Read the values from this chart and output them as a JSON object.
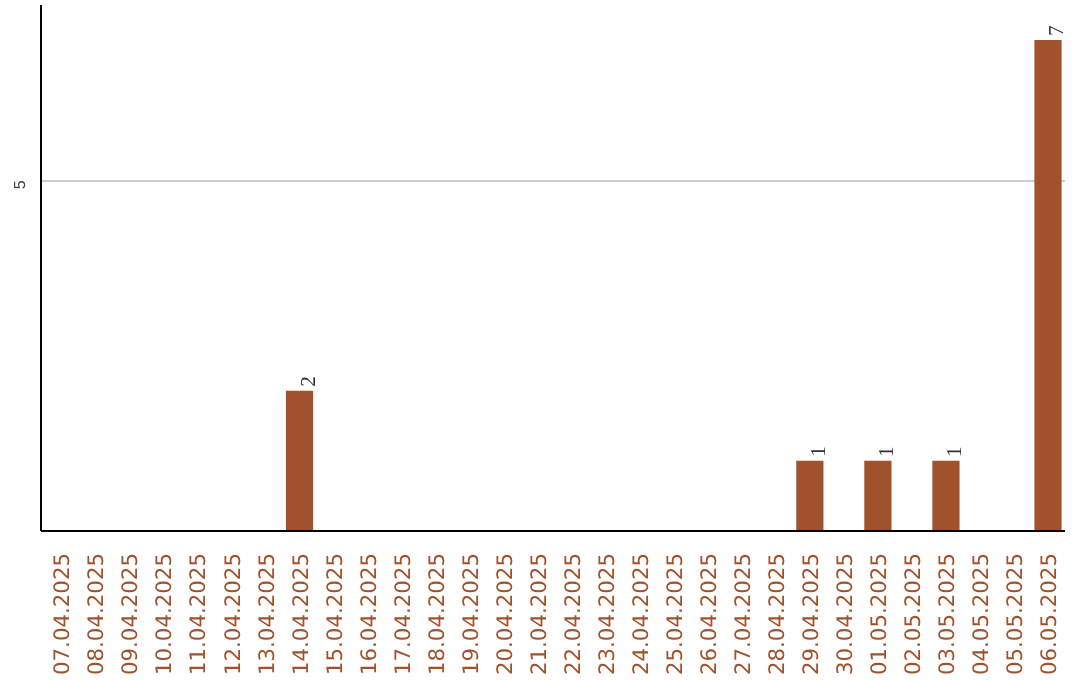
{
  "chart_data": {
    "type": "bar",
    "categories": [
      "07.04.2025",
      "08.04.2025",
      "09.04.2025",
      "10.04.2025",
      "11.04.2025",
      "12.04.2025",
      "13.04.2025",
      "14.04.2025",
      "15.04.2025",
      "16.04.2025",
      "17.04.2025",
      "18.04.2025",
      "19.04.2025",
      "20.04.2025",
      "21.04.2025",
      "22.04.2025",
      "23.04.2025",
      "24.04.2025",
      "25.04.2025",
      "26.04.2025",
      "27.04.2025",
      "28.04.2025",
      "29.04.2025",
      "30.04.2025",
      "01.05.2025",
      "02.05.2025",
      "03.05.2025",
      "04.05.2025",
      "05.05.2025",
      "06.05.2025"
    ],
    "values": [
      null,
      null,
      null,
      null,
      null,
      null,
      null,
      2,
      null,
      null,
      null,
      null,
      null,
      null,
      null,
      null,
      null,
      null,
      null,
      null,
      null,
      null,
      1,
      null,
      1,
      null,
      1,
      null,
      null,
      7
    ],
    "color": "#a0522d",
    "ylim": [
      0,
      7.5
    ],
    "yticks": [
      5
    ],
    "grid": "y",
    "data_labels": true
  }
}
